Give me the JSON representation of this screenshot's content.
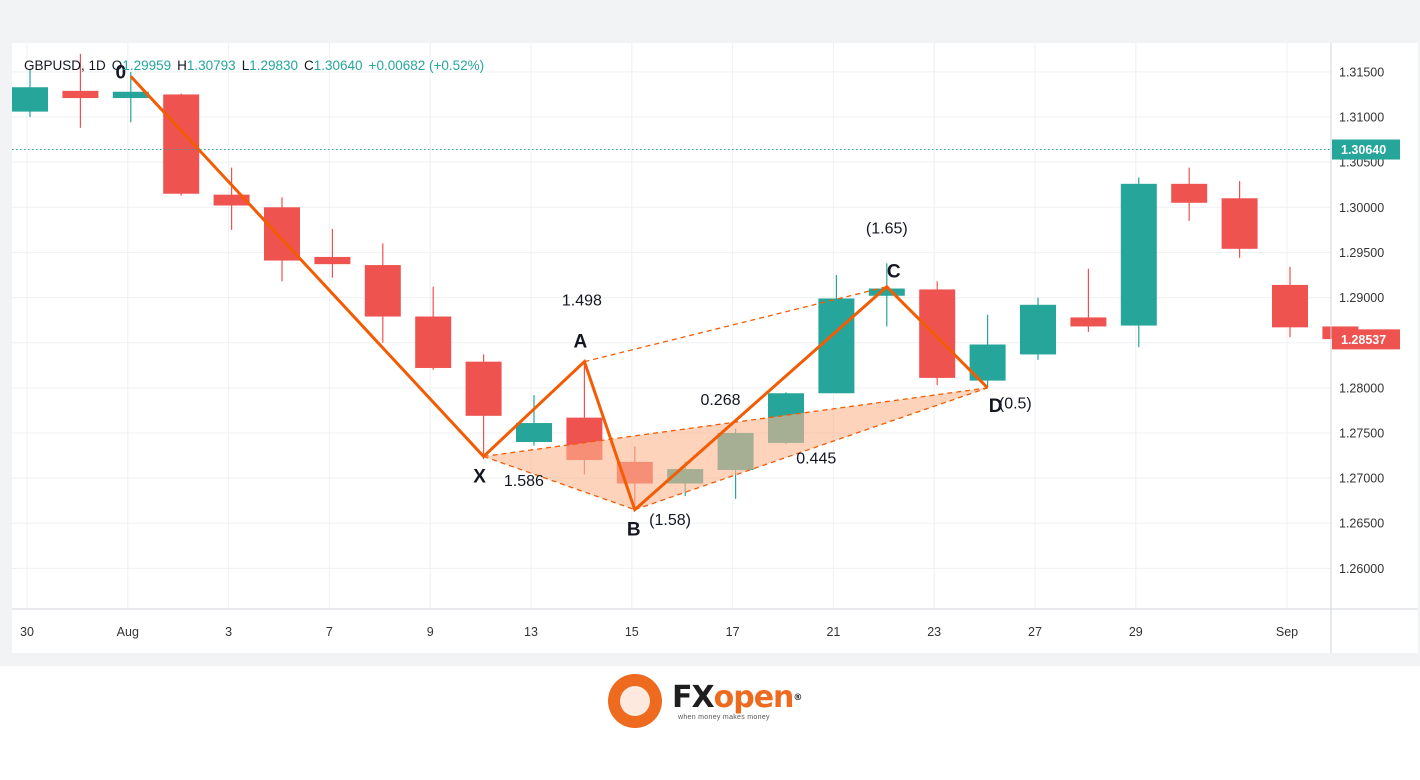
{
  "header": {
    "symbol": "GBPUSD",
    "timeframe": "1D",
    "open_label": "O",
    "open": "1.29959",
    "high_label": "H",
    "high": "1.30793",
    "low_label": "L",
    "low": "1.29830",
    "close_label": "C",
    "close": "1.30640",
    "change": "+0.00682 (+0.52%)"
  },
  "colors": {
    "bull": "#26a69a",
    "bear": "#ef5350",
    "pattern": "#f25c05",
    "pattern_fill": "#fbb590",
    "text": "#131722",
    "axis_text": "#333333",
    "price_line": "#26a69a"
  },
  "chart_data": {
    "type": "candlestick",
    "ylim": [
      1.2555,
      1.3182
    ],
    "y_ticks": [
      "1.26000",
      "1.26500",
      "1.27000",
      "1.27500",
      "1.28000",
      "1.28500",
      "1.29000",
      "1.29500",
      "1.30000",
      "1.30500",
      "1.31000",
      "1.31500"
    ],
    "x_tick_labels": [
      {
        "i": 0,
        "label": "30"
      },
      {
        "i": 2,
        "label": "Aug"
      },
      {
        "i": 4,
        "label": "3"
      },
      {
        "i": 6,
        "label": "7"
      },
      {
        "i": 8,
        "label": "9"
      },
      {
        "i": 10,
        "label": "13"
      },
      {
        "i": 12,
        "label": "15"
      },
      {
        "i": 14,
        "label": "17"
      },
      {
        "i": 16,
        "label": "21"
      },
      {
        "i": 18,
        "label": "23"
      },
      {
        "i": 20,
        "label": "27"
      },
      {
        "i": 22,
        "label": "29"
      },
      {
        "i": 25,
        "label": "Sep"
      }
    ],
    "candles": [
      {
        "o": 1.3106,
        "h": 1.3153,
        "l": 1.31,
        "c": 1.3133
      },
      {
        "o": 1.3129,
        "h": 1.317,
        "l": 1.3088,
        "c": 1.3121
      },
      {
        "o": 1.3121,
        "h": 1.315,
        "l": 1.3094,
        "c": 1.3128
      },
      {
        "o": 1.3125,
        "h": 1.3126,
        "l": 1.3013,
        "c": 1.3015
      },
      {
        "o": 1.3014,
        "h": 1.3044,
        "l": 1.2975,
        "c": 1.3002
      },
      {
        "o": 1.3,
        "h": 1.3011,
        "l": 1.2918,
        "c": 1.2941
      },
      {
        "o": 1.2945,
        "h": 1.2976,
        "l": 1.2922,
        "c": 1.2937
      },
      {
        "o": 1.2936,
        "h": 1.296,
        "l": 1.285,
        "c": 1.2879
      },
      {
        "o": 1.2879,
        "h": 1.2912,
        "l": 1.282,
        "c": 1.2822
      },
      {
        "o": 1.2829,
        "h": 1.2837,
        "l": 1.2721,
        "c": 1.2769
      },
      {
        "o": 1.274,
        "h": 1.2792,
        "l": 1.2736,
        "c": 1.2761
      },
      {
        "o": 1.2767,
        "h": 1.2827,
        "l": 1.2704,
        "c": 1.272
      },
      {
        "o": 1.2718,
        "h": 1.2735,
        "l": 1.2664,
        "c": 1.2694
      },
      {
        "o": 1.2694,
        "h": 1.2718,
        "l": 1.268,
        "c": 1.271
      },
      {
        "o": 1.2709,
        "h": 1.2755,
        "l": 1.2677,
        "c": 1.275
      },
      {
        "o": 1.2739,
        "h": 1.2795,
        "l": 1.2738,
        "c": 1.2794
      },
      {
        "o": 1.2794,
        "h": 1.2925,
        "l": 1.2794,
        "c": 1.2899
      },
      {
        "o": 1.2902,
        "h": 1.2938,
        "l": 1.2868,
        "c": 1.291
      },
      {
        "o": 1.2909,
        "h": 1.2918,
        "l": 1.2803,
        "c": 1.2811
      },
      {
        "o": 1.2808,
        "h": 1.2881,
        "l": 1.2801,
        "c": 1.2848
      },
      {
        "o": 1.2837,
        "h": 1.29,
        "l": 1.2831,
        "c": 1.2892
      },
      {
        "o": 1.2878,
        "h": 1.2932,
        "l": 1.2862,
        "c": 1.2868
      },
      {
        "o": 1.2869,
        "h": 1.3033,
        "l": 1.2845,
        "c": 1.3026
      },
      {
        "o": 1.3026,
        "h": 1.3044,
        "l": 1.2985,
        "c": 1.3005
      },
      {
        "o": 1.301,
        "h": 1.3029,
        "l": 1.2944,
        "c": 1.2954
      },
      {
        "o": 1.2914,
        "h": 1.2934,
        "l": 1.2856,
        "c": 1.2867
      },
      {
        "o": 1.2868,
        "h": 1.2868,
        "l": 1.2852,
        "c": 1.2854
      }
    ],
    "current_price": {
      "value": 1.3064,
      "label": "1.30640"
    },
    "last_price": {
      "value": 1.28537,
      "label": "1.28537"
    },
    "pattern_points": [
      {
        "name": "0",
        "i": 2.0,
        "price": 1.3145
      },
      {
        "name": "X",
        "i": 9.0,
        "price": 1.2724
      },
      {
        "name": "A",
        "i": 11.0,
        "price": 1.2829
      },
      {
        "name": "B",
        "i": 12.0,
        "price": 1.2665
      },
      {
        "name": "C",
        "i": 17.0,
        "price": 1.2912
      },
      {
        "name": "D",
        "i": 19.0,
        "price": 1.28
      }
    ],
    "pattern_labels": [
      {
        "text": "0",
        "point": "0"
      },
      {
        "text": "X",
        "point": "X"
      },
      {
        "text": "A",
        "point": "A"
      },
      {
        "text": "B",
        "point": "B"
      },
      {
        "text": "C",
        "point": "C"
      },
      {
        "text": "D",
        "point": "D"
      }
    ],
    "ratio_labels": [
      {
        "text": "1.498",
        "i": 10.95,
        "price": 1.2891
      },
      {
        "text": "0.268",
        "i": 13.7,
        "price": 1.2781
      },
      {
        "text": "0.445",
        "i": 15.6,
        "price": 1.2716
      },
      {
        "text": "1.586",
        "i": 9.8,
        "price": 1.2691
      },
      {
        "text": "(1.58)",
        "i": 12.7,
        "price": 1.2648
      },
      {
        "text": "(1.65)",
        "i": 17.0,
        "price": 1.2971
      },
      {
        "text": "(0.5)",
        "i": 19.55,
        "price": 1.2777
      }
    ]
  },
  "brand": {
    "name_a": "FX",
    "name_b": "open",
    "registered": "®",
    "tagline": "when money makes money"
  }
}
